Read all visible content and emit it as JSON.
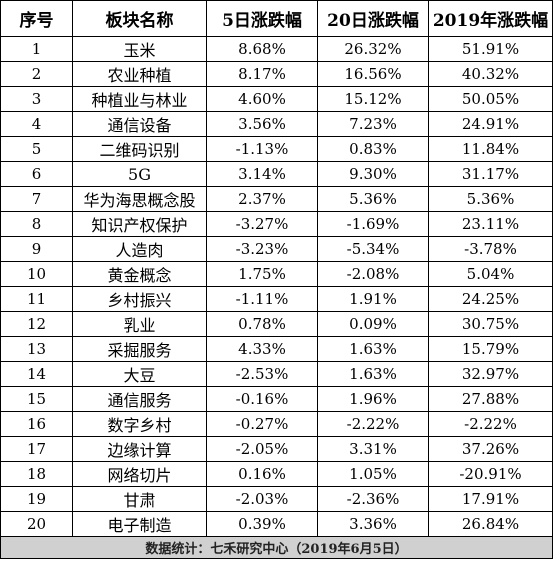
{
  "table": {
    "headers": [
      "序号",
      "板块名称",
      "5日涨跌幅",
      "20日涨跌幅",
      "2019年涨跌幅"
    ],
    "rows": [
      [
        "1",
        "玉米",
        "8.68%",
        "26.32%",
        "51.91%"
      ],
      [
        "2",
        "农业种植",
        "8.17%",
        "16.56%",
        "40.32%"
      ],
      [
        "3",
        "种植业与林业",
        "4.60%",
        "15.12%",
        "50.05%"
      ],
      [
        "4",
        "通信设备",
        "3.56%",
        "7.23%",
        "24.91%"
      ],
      [
        "5",
        "二维码识别",
        "-1.13%",
        "0.83%",
        "11.84%"
      ],
      [
        "6",
        "5G",
        "3.14%",
        "9.30%",
        "31.17%"
      ],
      [
        "7",
        "华为海思概念股",
        "2.37%",
        "5.36%",
        "5.36%"
      ],
      [
        "8",
        "知识产权保护",
        "-3.27%",
        "-1.69%",
        "23.11%"
      ],
      [
        "9",
        "人造肉",
        "-3.23%",
        "-5.34%",
        "-3.78%"
      ],
      [
        "10",
        "黄金概念",
        "1.75%",
        "-2.08%",
        "5.04%"
      ],
      [
        "11",
        "乡村振兴",
        "-1.11%",
        "1.91%",
        "24.25%"
      ],
      [
        "12",
        "乳业",
        "0.78%",
        "0.09%",
        "30.75%"
      ],
      [
        "13",
        "采掘服务",
        "4.33%",
        "1.63%",
        "15.79%"
      ],
      [
        "14",
        "大豆",
        "-2.53%",
        "1.63%",
        "32.97%"
      ],
      [
        "15",
        "通信服务",
        "-0.16%",
        "1.96%",
        "27.88%"
      ],
      [
        "16",
        "数字乡村",
        "-0.27%",
        "-2.22%",
        "-2.22%"
      ],
      [
        "17",
        "边缘计算",
        "-2.05%",
        "3.31%",
        "37.26%"
      ],
      [
        "18",
        "网络切片",
        "0.16%",
        "1.05%",
        "-20.91%"
      ],
      [
        "19",
        "甘肃",
        "-2.03%",
        "-2.36%",
        "17.91%"
      ],
      [
        "20",
        "电子制造",
        "0.39%",
        "3.36%",
        "26.84%"
      ]
    ],
    "footer": "数据统计：七禾研究中心（2019年6月5日）"
  }
}
